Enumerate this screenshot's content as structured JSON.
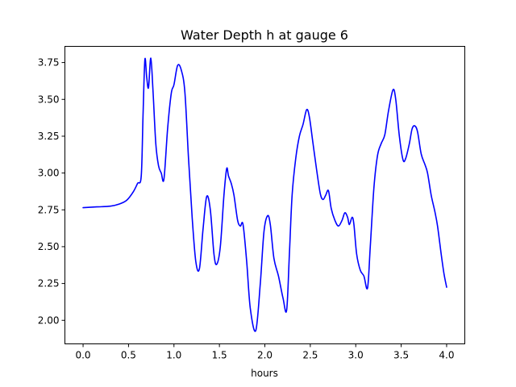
{
  "chart_data": {
    "type": "line",
    "title": "Water Depth h at gauge 6",
    "xlabel": "hours",
    "ylabel": "",
    "xlim": [
      -0.2,
      4.2
    ],
    "ylim": [
      1.84,
      3.86
    ],
    "grid": false,
    "x_ticks": [
      0.0,
      0.5,
      1.0,
      1.5,
      2.0,
      2.5,
      3.0,
      3.5,
      4.0
    ],
    "x_tick_labels": [
      "0.0",
      "0.5",
      "1.0",
      "1.5",
      "2.0",
      "2.5",
      "3.0",
      "3.5",
      "4.0"
    ],
    "y_ticks": [
      2.0,
      2.25,
      2.5,
      2.75,
      3.0,
      3.25,
      3.5,
      3.75
    ],
    "y_tick_labels": [
      "2.00",
      "2.25",
      "2.50",
      "2.75",
      "3.00",
      "3.25",
      "3.50",
      "3.75"
    ],
    "series": [
      {
        "color": "#0000ff",
        "points": [
          [
            0.0,
            2.765
          ],
          [
            0.15,
            2.77
          ],
          [
            0.3,
            2.775
          ],
          [
            0.4,
            2.79
          ],
          [
            0.48,
            2.815
          ],
          [
            0.55,
            2.87
          ],
          [
            0.6,
            2.93
          ],
          [
            0.64,
            2.98
          ],
          [
            0.66,
            3.4
          ],
          [
            0.68,
            3.77
          ],
          [
            0.7,
            3.65
          ],
          [
            0.72,
            3.58
          ],
          [
            0.745,
            3.78
          ],
          [
            0.77,
            3.55
          ],
          [
            0.8,
            3.2
          ],
          [
            0.83,
            3.05
          ],
          [
            0.86,
            3.0
          ],
          [
            0.89,
            2.96
          ],
          [
            0.93,
            3.3
          ],
          [
            0.97,
            3.54
          ],
          [
            1.0,
            3.6
          ],
          [
            1.04,
            3.73
          ],
          [
            1.08,
            3.7
          ],
          [
            1.12,
            3.55
          ],
          [
            1.16,
            3.1
          ],
          [
            1.2,
            2.7
          ],
          [
            1.24,
            2.4
          ],
          [
            1.28,
            2.35
          ],
          [
            1.32,
            2.62
          ],
          [
            1.36,
            2.84
          ],
          [
            1.4,
            2.75
          ],
          [
            1.44,
            2.45
          ],
          [
            1.47,
            2.38
          ],
          [
            1.51,
            2.5
          ],
          [
            1.55,
            2.85
          ],
          [
            1.58,
            3.03
          ],
          [
            1.6,
            2.98
          ],
          [
            1.63,
            2.93
          ],
          [
            1.66,
            2.85
          ],
          [
            1.7,
            2.68
          ],
          [
            1.73,
            2.64
          ],
          [
            1.76,
            2.65
          ],
          [
            1.8,
            2.4
          ],
          [
            1.84,
            2.08
          ],
          [
            1.9,
            1.93
          ],
          [
            1.95,
            2.25
          ],
          [
            1.99,
            2.6
          ],
          [
            2.03,
            2.71
          ],
          [
            2.06,
            2.65
          ],
          [
            2.1,
            2.42
          ],
          [
            2.15,
            2.3
          ],
          [
            2.2,
            2.15
          ],
          [
            2.24,
            2.07
          ],
          [
            2.27,
            2.45
          ],
          [
            2.3,
            2.85
          ],
          [
            2.34,
            3.1
          ],
          [
            2.38,
            3.25
          ],
          [
            2.42,
            3.33
          ],
          [
            2.46,
            3.43
          ],
          [
            2.49,
            3.38
          ],
          [
            2.53,
            3.2
          ],
          [
            2.57,
            3.02
          ],
          [
            2.61,
            2.86
          ],
          [
            2.64,
            2.82
          ],
          [
            2.67,
            2.85
          ],
          [
            2.7,
            2.88
          ],
          [
            2.73,
            2.76
          ],
          [
            2.77,
            2.68
          ],
          [
            2.81,
            2.64
          ],
          [
            2.85,
            2.68
          ],
          [
            2.88,
            2.73
          ],
          [
            2.91,
            2.7
          ],
          [
            2.93,
            2.65
          ],
          [
            2.96,
            2.7
          ],
          [
            2.98,
            2.65
          ],
          [
            3.01,
            2.45
          ],
          [
            3.05,
            2.34
          ],
          [
            3.09,
            2.3
          ],
          [
            3.13,
            2.22
          ],
          [
            3.16,
            2.5
          ],
          [
            3.2,
            2.9
          ],
          [
            3.24,
            3.12
          ],
          [
            3.28,
            3.2
          ],
          [
            3.32,
            3.26
          ],
          [
            3.36,
            3.42
          ],
          [
            3.41,
            3.565
          ],
          [
            3.44,
            3.5
          ],
          [
            3.48,
            3.25
          ],
          [
            3.52,
            3.09
          ],
          [
            3.55,
            3.1
          ],
          [
            3.59,
            3.2
          ],
          [
            3.62,
            3.3
          ],
          [
            3.65,
            3.32
          ],
          [
            3.68,
            3.28
          ],
          [
            3.72,
            3.13
          ],
          [
            3.76,
            3.06
          ],
          [
            3.79,
            3.0
          ],
          [
            3.83,
            2.85
          ],
          [
            3.87,
            2.74
          ],
          [
            3.9,
            2.64
          ],
          [
            3.94,
            2.45
          ],
          [
            3.97,
            2.32
          ],
          [
            4.0,
            2.225
          ]
        ]
      }
    ]
  }
}
